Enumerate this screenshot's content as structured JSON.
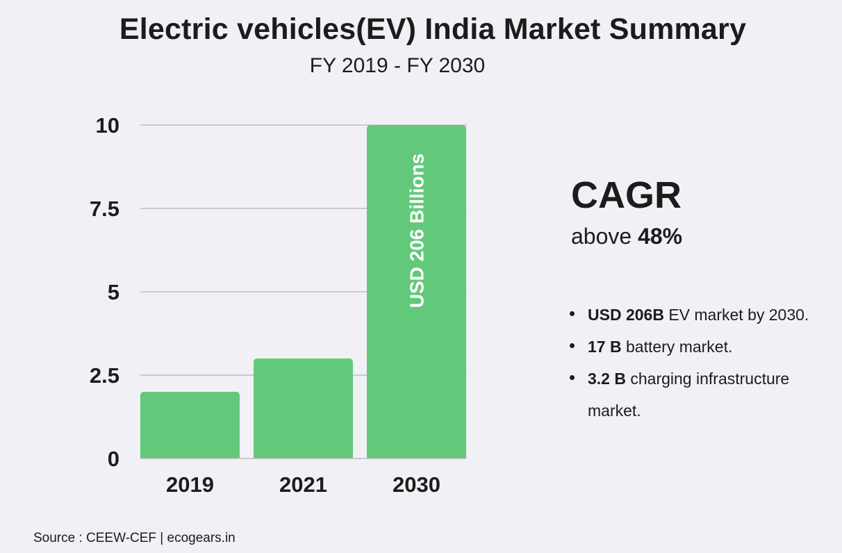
{
  "header": {
    "title": "Electric vehicles(EV) India Market Summary",
    "subtitle": "FY 2019 - FY 2030"
  },
  "chart_data": {
    "type": "bar",
    "categories": [
      "2019",
      "2021",
      "2030"
    ],
    "values": [
      2,
      3,
      10
    ],
    "ylim": [
      0,
      10
    ],
    "yticks": [
      "0",
      "2.5",
      "5",
      "7.5",
      "10"
    ],
    "ytick_values": [
      0,
      2.5,
      5,
      7.5,
      10
    ],
    "grid": true,
    "bar_color": "#63c97a",
    "annotation": {
      "category": "2030",
      "text": "USD 206 Billions"
    }
  },
  "cagr": {
    "title": "CAGR",
    "prefix": "above",
    "value": "48%"
  },
  "facts": [
    {
      "bold": "USD 206B",
      "text": " EV market by 2030."
    },
    {
      "bold": "17 B",
      "text": " battery market."
    },
    {
      "bold": "3.2 B",
      "text": " charging infrastructure market."
    }
  ],
  "footer": {
    "source": "Source : CEEW-CEF | ecogears.in"
  }
}
